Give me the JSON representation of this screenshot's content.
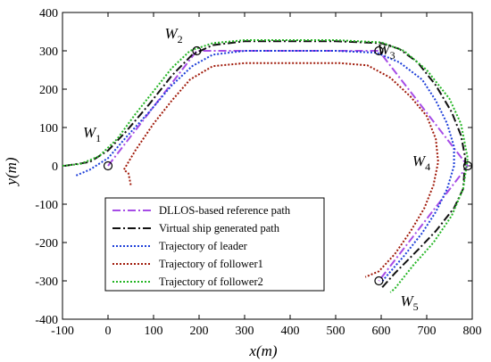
{
  "chart_data": {
    "type": "line",
    "title": "",
    "xlabel": "x(m)",
    "ylabel": "y(m)",
    "xlim": [
      -100,
      800
    ],
    "ylim": [
      -400,
      400
    ],
    "xticks": [
      -100,
      0,
      100,
      200,
      300,
      400,
      500,
      600,
      700,
      800
    ],
    "yticks": [
      -400,
      -300,
      -200,
      -100,
      0,
      100,
      200,
      300,
      400
    ],
    "grid": false,
    "legend_position": "lower-left",
    "waypoints": [
      {
        "name": "W",
        "sub": "1",
        "x": 0,
        "y": 0
      },
      {
        "name": "W",
        "sub": "2",
        "x": 195,
        "y": 300
      },
      {
        "name": "W",
        "sub": "3",
        "x": 595,
        "y": 300
      },
      {
        "name": "W",
        "sub": "4",
        "x": 790,
        "y": 0
      },
      {
        "name": "W",
        "sub": "5",
        "x": 595,
        "y": -300
      }
    ],
    "series": [
      {
        "name": "DLLOS-based reference path",
        "color": "#a64ce6",
        "style": "dashdot",
        "x": [
          0,
          195,
          595,
          790,
          595
        ],
        "y": [
          0,
          300,
          300,
          0,
          -300
        ]
      },
      {
        "name": "Virtual ship generated path",
        "color": "#111111",
        "style": "dashdot",
        "x": [
          -95,
          -40,
          0,
          40,
          90,
          140,
          185,
          230,
          300,
          400,
          500,
          600,
          640,
          680,
          720,
          755,
          775,
          785,
          780,
          760,
          720,
          680,
          630,
          600
        ],
        "y": [
          0,
          10,
          40,
          90,
          160,
          235,
          290,
          315,
          325,
          325,
          325,
          320,
          305,
          270,
          210,
          140,
          80,
          20,
          -60,
          -110,
          -170,
          -220,
          -280,
          -320
        ]
      },
      {
        "name": "Trajectory of leader",
        "color": "#1d3fd9",
        "style": "dotted",
        "x": [
          -70,
          -40,
          0,
          40,
          90,
          140,
          185,
          230,
          300,
          400,
          500,
          590,
          640,
          690,
          720,
          745,
          760,
          760,
          745,
          720,
          690,
          650,
          610,
          600
        ],
        "y": [
          -25,
          -10,
          20,
          75,
          140,
          210,
          260,
          290,
          300,
          300,
          300,
          295,
          270,
          225,
          170,
          110,
          50,
          0,
          -60,
          -120,
          -175,
          -235,
          -290,
          -305
        ]
      },
      {
        "name": "Trajectory of follower1",
        "color": "#a01a0a",
        "style": "dotted",
        "x": [
          50,
          45,
          35,
          60,
          100,
          140,
          180,
          230,
          300,
          400,
          510,
          570,
          620,
          665,
          700,
          720,
          725,
          715,
          695,
          665,
          630,
          595,
          565
        ],
        "y": [
          -50,
          -20,
          -10,
          40,
          110,
          170,
          225,
          260,
          268,
          268,
          268,
          262,
          230,
          180,
          130,
          70,
          10,
          -50,
          -110,
          -170,
          -230,
          -275,
          -290
        ]
      },
      {
        "name": "Trajectory of follower2",
        "color": "#23b523",
        "style": "dotted",
        "x": [
          -100,
          -60,
          -20,
          20,
          60,
          100,
          140,
          180,
          230,
          300,
          400,
          500,
          600,
          650,
          700,
          750,
          775,
          790,
          780,
          755,
          715,
          670,
          630,
          620
        ],
        "y": [
          0,
          5,
          25,
          70,
          135,
          195,
          255,
          300,
          320,
          328,
          328,
          328,
          322,
          300,
          250,
          175,
          110,
          20,
          -60,
          -130,
          -200,
          -260,
          -320,
          -330
        ]
      }
    ]
  }
}
